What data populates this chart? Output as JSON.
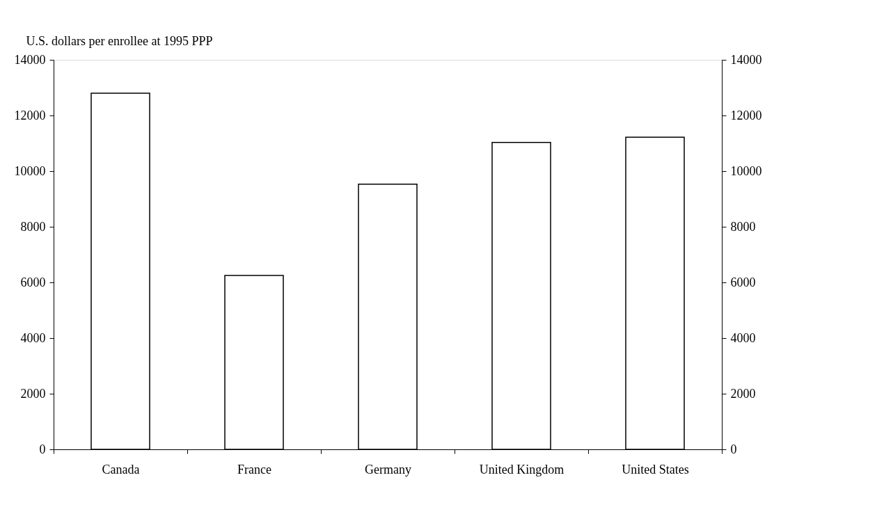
{
  "chart_data": {
    "type": "bar",
    "ylabel": "U.S. dollars per enrollee at 1995 PPP",
    "categories": [
      "Canada",
      "France",
      "Germany",
      "United Kingdom",
      "United States"
    ],
    "values": [
      12800,
      6250,
      9530,
      11030,
      11220
    ],
    "color": "#ffffff",
    "ylim": [
      0,
      14000
    ],
    "yticks": [
      0,
      2000,
      4000,
      6000,
      8000,
      10000,
      12000,
      14000
    ],
    "y2lim": [
      0,
      14000
    ],
    "y2ticks": [
      0,
      2000,
      4000,
      6000,
      8000,
      10000,
      12000,
      14000
    ],
    "grid": false
  }
}
